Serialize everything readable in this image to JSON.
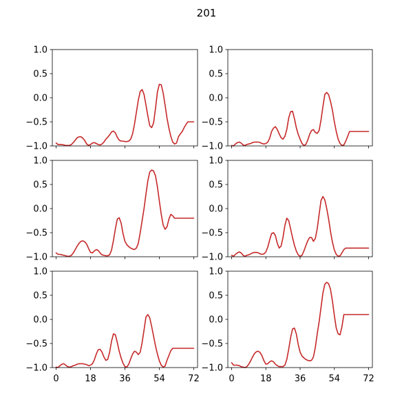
{
  "figure": {
    "title": "201"
  },
  "colors": {
    "line": "#c62828",
    "axes": "#000000",
    "background": "#ffffff"
  },
  "chart_data": [
    {
      "type": "line",
      "panel": "top-left",
      "xlim": [
        -2,
        74
      ],
      "ylim": [
        -1,
        1
      ],
      "xticks": [
        0,
        18,
        36,
        54,
        72
      ],
      "yticks": [
        -1.0,
        -0.5,
        0.0,
        0.5,
        1.0
      ],
      "ytick_labels": [
        "−1.0",
        "−0.5",
        "0.0",
        "0.5",
        "1.0"
      ],
      "xtick_labels": [
        "0",
        "18",
        "36",
        "54",
        "72"
      ],
      "show_xtick_labels": false,
      "series": [
        {
          "x": [
            0,
            1,
            2,
            3,
            4,
            5,
            6,
            7,
            8,
            9,
            10,
            11,
            12,
            13,
            14,
            15,
            16,
            17,
            18,
            19,
            20,
            21,
            22,
            23,
            24,
            25,
            26,
            27,
            28,
            29,
            30,
            31,
            32,
            33,
            34,
            35,
            36,
            37,
            38,
            39,
            40,
            41,
            42,
            43,
            44,
            45,
            46,
            47,
            48,
            49,
            50,
            51,
            52,
            53,
            54,
            55,
            56,
            57,
            58,
            59,
            60,
            61,
            62,
            63,
            64,
            65,
            66,
            67,
            68,
            69,
            70,
            71,
            72
          ],
          "y": [
            -0.94,
            -0.97,
            -0.97,
            -0.97,
            -0.98,
            -0.99,
            -0.99,
            -0.99,
            -0.97,
            -0.93,
            -0.88,
            -0.83,
            -0.81,
            -0.81,
            -0.84,
            -0.89,
            -0.96,
            -0.99,
            -0.97,
            -0.94,
            -0.93,
            -0.95,
            -0.97,
            -0.98,
            -0.96,
            -0.92,
            -0.86,
            -0.82,
            -0.77,
            -0.71,
            -0.69,
            -0.73,
            -0.82,
            -0.88,
            -0.9,
            -0.9,
            -0.91,
            -0.91,
            -0.9,
            -0.86,
            -0.75,
            -0.55,
            -0.3,
            -0.05,
            0.13,
            0.17,
            0.07,
            -0.15,
            -0.38,
            -0.58,
            -0.62,
            -0.52,
            -0.22,
            0.12,
            0.28,
            0.27,
            0.1,
            -0.15,
            -0.42,
            -0.63,
            -0.8,
            -0.92,
            -0.96,
            -0.94,
            -0.81,
            -0.75,
            -0.7,
            -0.62,
            -0.55,
            -0.5,
            -0.5,
            -0.5,
            -0.5
          ]
        }
      ]
    },
    {
      "type": "line",
      "panel": "top-right",
      "xlim": [
        -2,
        74
      ],
      "ylim": [
        -1,
        1
      ],
      "xticks": [
        0,
        18,
        36,
        54,
        72
      ],
      "yticks": [
        -1.0,
        -0.5,
        0.0,
        0.5,
        1.0
      ],
      "ytick_labels": [
        "−1.0",
        "−0.5",
        "0.0",
        "0.5",
        "1.0"
      ],
      "xtick_labels": [
        "0",
        "18",
        "36",
        "54",
        "72"
      ],
      "show_xtick_labels": false,
      "series": [
        {
          "x": [
            0,
            1,
            2,
            3,
            4,
            5,
            6,
            7,
            8,
            9,
            10,
            11,
            12,
            13,
            14,
            15,
            16,
            17,
            18,
            19,
            20,
            21,
            22,
            23,
            24,
            25,
            26,
            27,
            28,
            29,
            30,
            31,
            32,
            33,
            34,
            35,
            36,
            37,
            38,
            39,
            40,
            41,
            42,
            43,
            44,
            45,
            46,
            47,
            48,
            49,
            50,
            51,
            52,
            53,
            54,
            55,
            56,
            57,
            58,
            59,
            60,
            61,
            62,
            63,
            64,
            65,
            66,
            67,
            68,
            69,
            70,
            71,
            72
          ],
          "y": [
            -0.99,
            -1.0,
            -0.96,
            -0.93,
            -0.92,
            -0.94,
            -0.98,
            -0.99,
            -0.97,
            -0.96,
            -0.95,
            -0.93,
            -0.92,
            -0.92,
            -0.92,
            -0.93,
            -0.95,
            -0.96,
            -0.95,
            -0.92,
            -0.84,
            -0.7,
            -0.63,
            -0.6,
            -0.66,
            -0.75,
            -0.83,
            -0.86,
            -0.8,
            -0.66,
            -0.42,
            -0.29,
            -0.28,
            -0.43,
            -0.62,
            -0.76,
            -0.86,
            -0.95,
            -0.99,
            -0.97,
            -0.88,
            -0.76,
            -0.68,
            -0.66,
            -0.72,
            -0.74,
            -0.68,
            -0.46,
            -0.18,
            0.07,
            0.11,
            0.06,
            -0.08,
            -0.26,
            -0.5,
            -0.7,
            -0.86,
            -0.95,
            -0.99,
            -0.98,
            -0.9,
            -0.8,
            -0.7,
            -0.7,
            -0.7,
            -0.7,
            -0.7,
            -0.7,
            -0.7,
            -0.7,
            -0.7,
            -0.7,
            -0.7
          ]
        }
      ]
    },
    {
      "type": "line",
      "panel": "middle-left",
      "xlim": [
        -2,
        74
      ],
      "ylim": [
        -1,
        1
      ],
      "xticks": [
        0,
        18,
        36,
        54,
        72
      ],
      "yticks": [
        -1.0,
        -0.5,
        0.0,
        0.5,
        1.0
      ],
      "ytick_labels": [
        "−1.0",
        "−0.5",
        "0.0",
        "0.5",
        "1.0"
      ],
      "xtick_labels": [
        "0",
        "18",
        "36",
        "54",
        "72"
      ],
      "show_xtick_labels": false,
      "series": [
        {
          "x": [
            0,
            1,
            2,
            3,
            4,
            5,
            6,
            7,
            8,
            9,
            10,
            11,
            12,
            13,
            14,
            15,
            16,
            17,
            18,
            19,
            20,
            21,
            22,
            23,
            24,
            25,
            26,
            27,
            28,
            29,
            30,
            31,
            32,
            33,
            34,
            35,
            36,
            37,
            38,
            39,
            40,
            41,
            42,
            43,
            44,
            45,
            46,
            47,
            48,
            49,
            50,
            51,
            52,
            53,
            54,
            55,
            56,
            57,
            58,
            59,
            60,
            61,
            62,
            63,
            64,
            65,
            66,
            67,
            68,
            69,
            70,
            71,
            72
          ],
          "y": [
            -0.92,
            -0.95,
            -0.95,
            -0.96,
            -0.97,
            -0.98,
            -0.99,
            -0.99,
            -0.97,
            -0.92,
            -0.85,
            -0.78,
            -0.72,
            -0.68,
            -0.67,
            -0.69,
            -0.74,
            -0.83,
            -0.91,
            -0.92,
            -0.88,
            -0.85,
            -0.87,
            -0.92,
            -0.96,
            -0.97,
            -0.98,
            -0.98,
            -0.96,
            -0.86,
            -0.66,
            -0.42,
            -0.22,
            -0.19,
            -0.3,
            -0.52,
            -0.68,
            -0.75,
            -0.79,
            -0.82,
            -0.84,
            -0.85,
            -0.82,
            -0.72,
            -0.5,
            -0.25,
            0.0,
            0.3,
            0.58,
            0.76,
            0.8,
            0.78,
            0.68,
            0.45,
            0.16,
            -0.12,
            -0.34,
            -0.43,
            -0.38,
            -0.22,
            -0.12,
            -0.15,
            -0.2,
            -0.2,
            -0.2,
            -0.2,
            -0.2,
            -0.2,
            -0.2,
            -0.2,
            -0.2,
            -0.2,
            -0.2
          ]
        }
      ]
    },
    {
      "type": "line",
      "panel": "middle-right",
      "xlim": [
        -2,
        74
      ],
      "ylim": [
        -1,
        1
      ],
      "xticks": [
        0,
        18,
        36,
        54,
        72
      ],
      "yticks": [
        -1.0,
        -0.5,
        0.0,
        0.5,
        1.0
      ],
      "ytick_labels": [
        "−1.0",
        "−0.5",
        "0.0",
        "0.5",
        "1.0"
      ],
      "xtick_labels": [
        "0",
        "18",
        "36",
        "54",
        "72"
      ],
      "show_xtick_labels": false,
      "series": [
        {
          "x": [
            0,
            1,
            2,
            3,
            4,
            5,
            6,
            7,
            8,
            9,
            10,
            11,
            12,
            13,
            14,
            15,
            16,
            17,
            18,
            19,
            20,
            21,
            22,
            23,
            24,
            25,
            26,
            27,
            28,
            29,
            30,
            31,
            32,
            33,
            34,
            35,
            36,
            37,
            38,
            39,
            40,
            41,
            42,
            43,
            44,
            45,
            46,
            47,
            48,
            49,
            50,
            51,
            52,
            53,
            54,
            55,
            56,
            57,
            58,
            59,
            60,
            61,
            62,
            63,
            64,
            65,
            66,
            67,
            68,
            69,
            70,
            71,
            72
          ],
          "y": [
            -0.97,
            -0.99,
            -0.95,
            -0.92,
            -0.9,
            -0.92,
            -0.97,
            -0.99,
            -0.97,
            -0.96,
            -0.94,
            -0.92,
            -0.91,
            -0.91,
            -0.92,
            -0.94,
            -0.95,
            -0.94,
            -0.9,
            -0.8,
            -0.65,
            -0.52,
            -0.5,
            -0.56,
            -0.72,
            -0.82,
            -0.78,
            -0.6,
            -0.35,
            -0.2,
            -0.25,
            -0.42,
            -0.6,
            -0.76,
            -0.88,
            -0.96,
            -0.99,
            -0.97,
            -0.88,
            -0.77,
            -0.67,
            -0.6,
            -0.6,
            -0.68,
            -0.62,
            -0.42,
            -0.12,
            0.17,
            0.25,
            0.18,
            0.0,
            -0.22,
            -0.48,
            -0.7,
            -0.86,
            -0.95,
            -0.99,
            -0.98,
            -0.92,
            -0.85,
            -0.82,
            -0.82,
            -0.82,
            -0.82,
            -0.82,
            -0.82,
            -0.82,
            -0.82,
            -0.82,
            -0.82,
            -0.82,
            -0.82,
            -0.82
          ]
        }
      ]
    },
    {
      "type": "line",
      "panel": "bottom-left",
      "xlim": [
        -2,
        74
      ],
      "ylim": [
        -1,
        1
      ],
      "xticks": [
        0,
        18,
        36,
        54,
        72
      ],
      "yticks": [
        -1.0,
        -0.5,
        0.0,
        0.5,
        1.0
      ],
      "ytick_labels": [
        "−1.0",
        "−0.5",
        "0.0",
        "0.5",
        "1.0"
      ],
      "xtick_labels": [
        "0",
        "18",
        "36",
        "54",
        "72"
      ],
      "show_xtick_labels": true,
      "series": [
        {
          "x": [
            0,
            1,
            2,
            3,
            4,
            5,
            6,
            7,
            8,
            9,
            10,
            11,
            12,
            13,
            14,
            15,
            16,
            17,
            18,
            19,
            20,
            21,
            22,
            23,
            24,
            25,
            26,
            27,
            28,
            29,
            30,
            31,
            32,
            33,
            34,
            35,
            36,
            37,
            38,
            39,
            40,
            41,
            42,
            43,
            44,
            45,
            46,
            47,
            48,
            49,
            50,
            51,
            52,
            53,
            54,
            55,
            56,
            57,
            58,
            59,
            60,
            61,
            62,
            63,
            64,
            65,
            66,
            67,
            68,
            69,
            70,
            71,
            72
          ],
          "y": [
            -0.99,
            -1.0,
            -0.96,
            -0.93,
            -0.92,
            -0.95,
            -0.98,
            -0.99,
            -0.98,
            -0.96,
            -0.95,
            -0.93,
            -0.92,
            -0.92,
            -0.92,
            -0.93,
            -0.94,
            -0.96,
            -0.95,
            -0.92,
            -0.84,
            -0.72,
            -0.63,
            -0.62,
            -0.68,
            -0.78,
            -0.85,
            -0.83,
            -0.68,
            -0.45,
            -0.3,
            -0.32,
            -0.48,
            -0.66,
            -0.8,
            -0.91,
            -0.98,
            -0.99,
            -0.93,
            -0.82,
            -0.72,
            -0.66,
            -0.68,
            -0.73,
            -0.68,
            -0.48,
            -0.22,
            0.05,
            0.1,
            0.03,
            -0.15,
            -0.35,
            -0.55,
            -0.72,
            -0.86,
            -0.95,
            -0.99,
            -0.97,
            -0.85,
            -0.75,
            -0.65,
            -0.6,
            -0.6,
            -0.6,
            -0.6,
            -0.6,
            -0.6,
            -0.6,
            -0.6,
            -0.6,
            -0.6,
            -0.6,
            -0.6
          ]
        }
      ]
    },
    {
      "type": "line",
      "panel": "bottom-right",
      "xlim": [
        -2,
        74
      ],
      "ylim": [
        -1,
        1
      ],
      "xticks": [
        0,
        18,
        36,
        54,
        72
      ],
      "yticks": [
        -1.0,
        -0.5,
        0.0,
        0.5,
        1.0
      ],
      "ytick_labels": [
        "−1.0",
        "−0.5",
        "0.0",
        "0.5",
        "1.0"
      ],
      "xtick_labels": [
        "0",
        "18",
        "36",
        "54",
        "72"
      ],
      "show_xtick_labels": true,
      "series": [
        {
          "x": [
            0,
            1,
            2,
            3,
            4,
            5,
            6,
            7,
            8,
            9,
            10,
            11,
            12,
            13,
            14,
            15,
            16,
            17,
            18,
            19,
            20,
            21,
            22,
            23,
            24,
            25,
            26,
            27,
            28,
            29,
            30,
            31,
            32,
            33,
            34,
            35,
            36,
            37,
            38,
            39,
            40,
            41,
            42,
            43,
            44,
            45,
            46,
            47,
            48,
            49,
            50,
            51,
            52,
            53,
            54,
            55,
            56,
            57,
            58,
            59,
            60,
            61,
            62,
            63,
            64,
            65,
            66,
            67,
            68,
            69,
            70,
            71,
            72
          ],
          "y": [
            -0.9,
            -0.95,
            -0.95,
            -0.95,
            -0.96,
            -0.98,
            -0.99,
            -1.0,
            -0.98,
            -0.93,
            -0.86,
            -0.78,
            -0.71,
            -0.67,
            -0.66,
            -0.69,
            -0.76,
            -0.86,
            -0.93,
            -0.92,
            -0.88,
            -0.86,
            -0.88,
            -0.93,
            -0.96,
            -0.98,
            -0.98,
            -0.98,
            -0.95,
            -0.83,
            -0.62,
            -0.38,
            -0.2,
            -0.18,
            -0.3,
            -0.52,
            -0.68,
            -0.76,
            -0.8,
            -0.83,
            -0.85,
            -0.86,
            -0.85,
            -0.78,
            -0.58,
            -0.3,
            -0.05,
            0.25,
            0.55,
            0.73,
            0.77,
            0.74,
            0.62,
            0.38,
            0.08,
            -0.18,
            -0.3,
            -0.32,
            -0.15,
            0.1,
            0.1,
            0.1,
            0.1,
            0.1,
            0.1,
            0.1,
            0.1,
            0.1,
            0.1,
            0.1,
            0.1,
            0.1,
            0.1
          ]
        }
      ]
    }
  ]
}
